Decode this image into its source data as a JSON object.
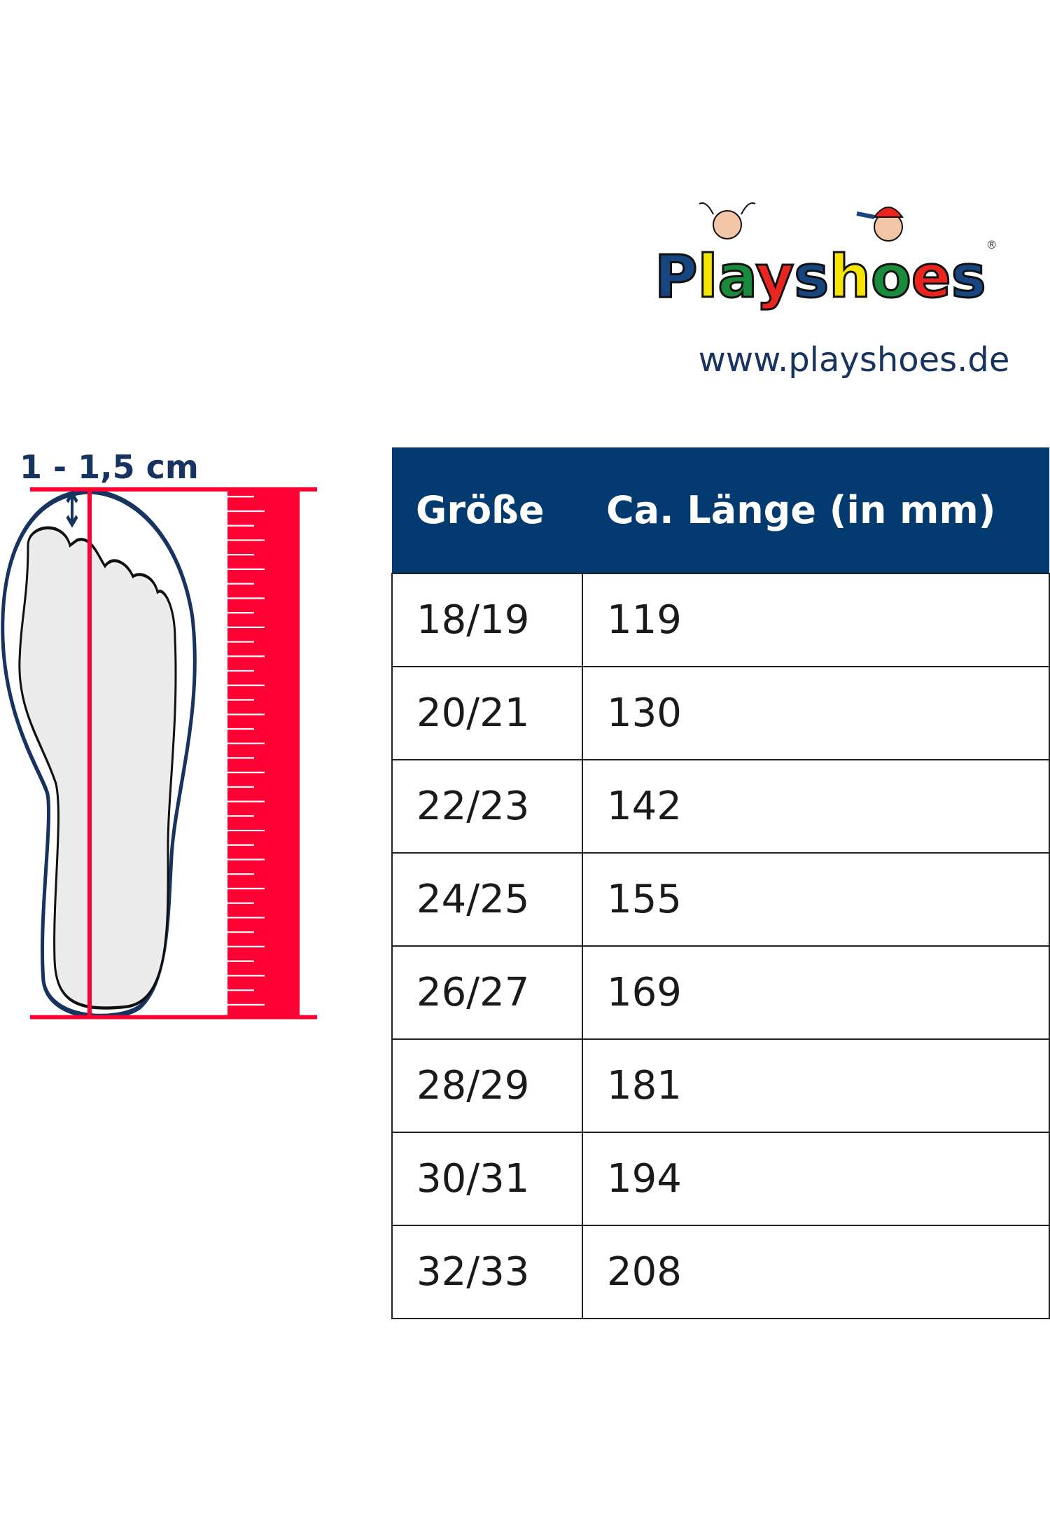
{
  "brand": {
    "name": "Playshoes",
    "url": "www.playshoes.de",
    "colors": {
      "blue": "#17457f",
      "green": "#1a8a3c",
      "red": "#e8261f",
      "yellow": "#f6e500"
    }
  },
  "foot": {
    "label": "1 - 1,5 cm",
    "accent": "#ff0033",
    "outline": "#17335f"
  },
  "table": {
    "headers": [
      "Größe",
      "Ca. Länge (in mm)"
    ],
    "rows": [
      [
        "18/19",
        "119"
      ],
      [
        "20/21",
        "130"
      ],
      [
        "22/23",
        "142"
      ],
      [
        "24/25",
        "155"
      ],
      [
        "26/27",
        "169"
      ],
      [
        "28/29",
        "181"
      ],
      [
        "30/31",
        "194"
      ],
      [
        "32/33",
        "208"
      ]
    ]
  }
}
